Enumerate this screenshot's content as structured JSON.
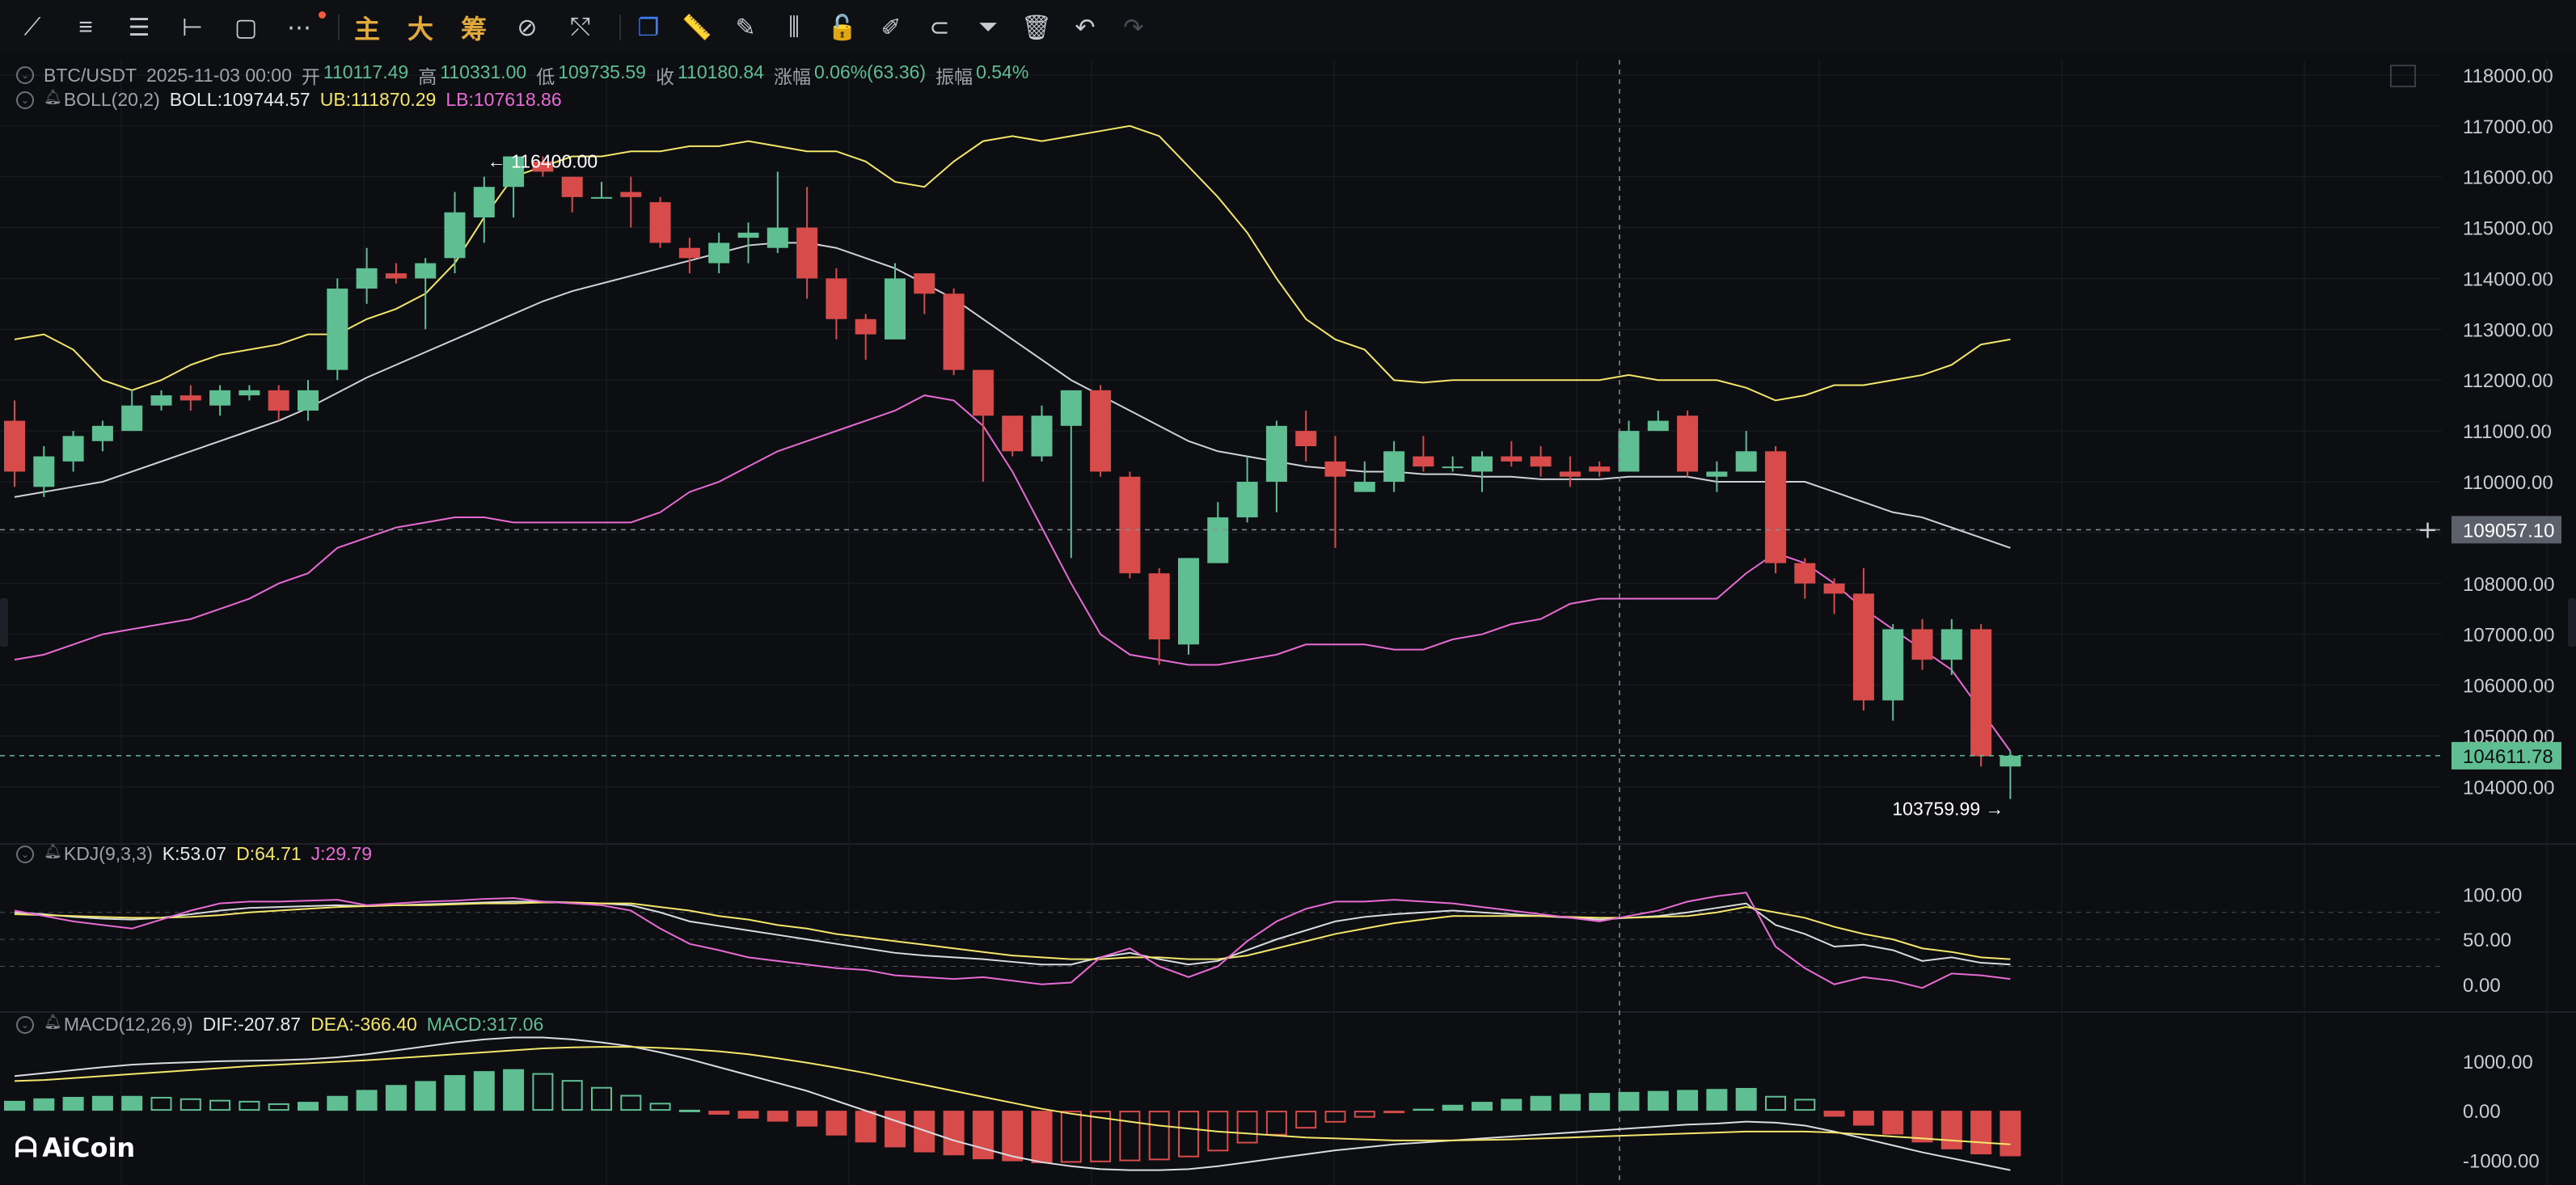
{
  "toolbar": {
    "tools": [
      {
        "name": "trend-line-icon",
        "glyph": "⟋"
      },
      {
        "name": "parallel-lines-icon",
        "glyph": "≡"
      },
      {
        "name": "horizontal-lines-icon",
        "glyph": "☰"
      },
      {
        "name": "horizontal-ray-icon",
        "glyph": "⊢"
      },
      {
        "name": "rectangle-icon",
        "glyph": "▢"
      },
      {
        "name": "more-icon",
        "glyph": "⋯"
      }
    ],
    "text_tabs": [
      "主",
      "大",
      "筹"
    ],
    "tools2": [
      {
        "name": "indicator-icon",
        "glyph": "⊘"
      },
      {
        "name": "measure-icon",
        "glyph": "⤲"
      }
    ],
    "tools3": [
      {
        "name": "copy-drawing-icon",
        "glyph": "❐"
      },
      {
        "name": "ruler-icon",
        "glyph": "📏"
      },
      {
        "name": "pen-icon",
        "glyph": "✎"
      },
      {
        "name": "candles-icon",
        "glyph": "⫼"
      },
      {
        "name": "lock-icon",
        "glyph": "🔓"
      },
      {
        "name": "note-icon",
        "glyph": "✐"
      },
      {
        "name": "magnet-icon",
        "glyph": "⊂"
      },
      {
        "name": "filter-icon",
        "glyph": "⏷"
      },
      {
        "name": "trash-icon",
        "glyph": "🗑"
      },
      {
        "name": "undo-icon",
        "glyph": "↶"
      },
      {
        "name": "redo-icon",
        "glyph": "↷"
      }
    ]
  },
  "legend": {
    "symbol": "BTC/USDT",
    "datetime": "2025-11-03 00:00",
    "open_label": "开",
    "open": "110117.49",
    "high_label": "高",
    "high": "110331.00",
    "low_label": "低",
    "low": "109735.59",
    "close_label": "收",
    "close": "110180.84",
    "change_label": "涨幅",
    "change": "0.06%(63.36)",
    "amp_label": "振幅",
    "amp": "0.54%",
    "boll_name": "BOLL(20,2)",
    "boll": "BOLL:109744.57",
    "ub": "UB:111870.29",
    "lb": "LB:107618.86",
    "kdj_name": "KDJ(9,3,3)",
    "k": "K:53.07",
    "d": "D:64.71",
    "j": "J:29.79",
    "macd_name": "MACD(12,26,9)",
    "dif": "DIF:-207.87",
    "dea": "DEA:-366.40",
    "macd": "MACD:317.06"
  },
  "logo": {
    "mark": "ᗩ",
    "text": "AiCoin"
  },
  "colors": {
    "up": "#5fbf93",
    "down": "#d84b4b",
    "mid": "#cfd2d8",
    "ub": "#f3e66a",
    "lb": "#e86bd5",
    "grid": "#1c1e24",
    "axis_text": "#c9ccd3",
    "last_price_bg": "#5fbf93",
    "crosshair_bg": "#5b606b"
  },
  "chart_data": {
    "type": "candlestick",
    "main": {
      "y_ticks": [
        104000,
        105000,
        106000,
        107000,
        108000,
        109000,
        110000,
        111000,
        112000,
        113000,
        114000,
        115000,
        116000,
        117000,
        118000
      ],
      "ylim": [
        103100,
        118300
      ],
      "candles": [
        [
          111200,
          110200,
          111600,
          109900
        ],
        [
          109900,
          110500,
          110700,
          109700
        ],
        [
          110400,
          110900,
          111000,
          110200
        ],
        [
          110800,
          111100,
          111200,
          110600
        ],
        [
          111000,
          111500,
          111800,
          111000
        ],
        [
          111500,
          111700,
          111800,
          111400
        ],
        [
          111700,
          111600,
          111900,
          111400
        ],
        [
          111500,
          111800,
          111900,
          111300
        ],
        [
          111700,
          111800,
          111900,
          111600
        ],
        [
          111800,
          111400,
          111900,
          111200
        ],
        [
          111400,
          111800,
          112000,
          111200
        ],
        [
          112200,
          113800,
          114000,
          112000
        ],
        [
          113800,
          114200,
          114600,
          113500
        ],
        [
          114100,
          114000,
          114300,
          113900
        ],
        [
          114000,
          114300,
          114400,
          113000
        ],
        [
          114400,
          115300,
          115700,
          114100
        ],
        [
          115200,
          115800,
          116000,
          114700
        ],
        [
          115800,
          116400,
          116400,
          115200
        ],
        [
          116300,
          116100,
          116400,
          116000
        ],
        [
          116000,
          115600,
          116000,
          115300
        ],
        [
          115600,
          115600,
          115900,
          115600
        ],
        [
          115700,
          115600,
          116000,
          115000
        ],
        [
          115500,
          114700,
          115600,
          114600
        ],
        [
          114600,
          114400,
          114800,
          114100
        ],
        [
          114300,
          114700,
          114900,
          114100
        ],
        [
          114800,
          114900,
          115100,
          114300
        ],
        [
          114600,
          115000,
          116100,
          114500
        ],
        [
          115000,
          114000,
          115800,
          113600
        ],
        [
          114000,
          113200,
          114200,
          112800
        ],
        [
          113200,
          112900,
          113300,
          112400
        ],
        [
          112800,
          114000,
          114300,
          112800
        ],
        [
          114100,
          113700,
          114000,
          113300
        ],
        [
          113700,
          112200,
          113800,
          112100
        ],
        [
          112200,
          111300,
          112000,
          110000
        ],
        [
          111300,
          110600,
          111300,
          110500
        ],
        [
          110500,
          111300,
          111500,
          110400
        ],
        [
          111100,
          111800,
          111800,
          108500
        ],
        [
          111800,
          110200,
          111900,
          110100
        ],
        [
          110100,
          108200,
          110200,
          108100
        ],
        [
          108200,
          106900,
          108300,
          106400
        ],
        [
          106800,
          108500,
          108500,
          106600
        ],
        [
          108400,
          109300,
          109600,
          108400
        ],
        [
          109300,
          110000,
          110500,
          109200
        ],
        [
          110000,
          111100,
          111200,
          109400
        ],
        [
          111000,
          110700,
          111400,
          110400
        ],
        [
          110400,
          110100,
          110900,
          108700
        ],
        [
          109800,
          110000,
          110400,
          109800
        ],
        [
          110000,
          110600,
          110800,
          109800
        ],
        [
          110500,
          110300,
          110900,
          110200
        ],
        [
          110300,
          110300,
          110500,
          110200
        ],
        [
          110200,
          110500,
          110600,
          109800
        ],
        [
          110500,
          110400,
          110800,
          110300
        ],
        [
          110500,
          110300,
          110700,
          110100
        ],
        [
          110200,
          110100,
          110500,
          109900
        ],
        [
          110300,
          110200,
          110400,
          110100
        ],
        [
          110200,
          111000,
          111200,
          110200
        ],
        [
          111000,
          111200,
          111400,
          111000
        ],
        [
          111300,
          110200,
          111400,
          110100
        ],
        [
          110100,
          110200,
          110400,
          109800
        ],
        [
          110200,
          110600,
          111000,
          110200
        ],
        [
          110600,
          108400,
          110700,
          108200
        ],
        [
          108400,
          108000,
          108500,
          107700
        ],
        [
          108000,
          107800,
          108100,
          107400
        ],
        [
          107800,
          105700,
          108300,
          105500
        ],
        [
          105700,
          107100,
          107200,
          105300
        ],
        [
          107100,
          106500,
          107300,
          106300
        ],
        [
          106500,
          107100,
          107300,
          106200
        ],
        [
          107100,
          104600,
          107200,
          104400
        ],
        [
          104400,
          104612,
          104700,
          103760
        ]
      ],
      "mid": [
        109700,
        109800,
        109900,
        110000,
        110200,
        110400,
        110600,
        110800,
        111000,
        111200,
        111450,
        111750,
        112050,
        112300,
        112550,
        112800,
        113050,
        113300,
        113550,
        113750,
        113900,
        114050,
        114200,
        114350,
        114500,
        114650,
        114700,
        114700,
        114600,
        114400,
        114200,
        113900,
        113600,
        113200,
        112800,
        112400,
        112000,
        111700,
        111400,
        111100,
        110800,
        110600,
        110500,
        110400,
        110300,
        110250,
        110200,
        110200,
        110150,
        110150,
        110100,
        110100,
        110050,
        110050,
        110050,
        110100,
        110100,
        110100,
        110000,
        110000,
        110000,
        110000,
        109800,
        109600,
        109400,
        109300,
        109100,
        108900,
        108700
      ],
      "ub": [
        112800,
        112900,
        112600,
        112000,
        111800,
        112000,
        112300,
        112500,
        112600,
        112700,
        112900,
        112900,
        113200,
        113400,
        113700,
        114300,
        115200,
        116000,
        116200,
        116400,
        116400,
        116500,
        116500,
        116600,
        116600,
        116700,
        116600,
        116500,
        116500,
        116300,
        115900,
        115800,
        116300,
        116700,
        116800,
        116700,
        116800,
        116900,
        117000,
        116800,
        116200,
        115600,
        114900,
        114000,
        113200,
        112800,
        112600,
        112000,
        111950,
        112000,
        112000,
        112000,
        112000,
        112000,
        112000,
        112100,
        112000,
        112000,
        112000,
        111850,
        111600,
        111700,
        111900,
        111900,
        112000,
        112100,
        112300,
        112700,
        112800
      ],
      "lb": [
        106500,
        106600,
        106800,
        107000,
        107100,
        107200,
        107300,
        107500,
        107700,
        108000,
        108200,
        108700,
        108900,
        109100,
        109200,
        109300,
        109300,
        109200,
        109200,
        109200,
        109200,
        109200,
        109400,
        109800,
        110000,
        110300,
        110600,
        110800,
        111000,
        111200,
        111400,
        111700,
        111600,
        111100,
        110200,
        109100,
        108000,
        107000,
        106600,
        106500,
        106400,
        106400,
        106500,
        106600,
        106800,
        106800,
        106800,
        106700,
        106700,
        106900,
        107000,
        107200,
        107300,
        107600,
        107700,
        107700,
        107700,
        107700,
        107700,
        108200,
        108600,
        108400,
        108000,
        107500,
        107100,
        106700,
        106300,
        105500,
        104700
      ]
    },
    "markers": {
      "high": "← 116400.00",
      "low": "103759.99 →"
    },
    "price_labels": {
      "crosshair": "109057.10",
      "last": "104611.78"
    },
    "kdj": {
      "y_ticks": [
        0,
        50,
        100
      ],
      "y_tick_labels": [
        "0.00",
        "50.00",
        "100.00"
      ],
      "ylim": [
        -20,
        140
      ],
      "k": [
        80,
        78,
        75,
        73,
        72,
        74,
        78,
        82,
        85,
        86,
        87,
        88,
        87,
        88,
        89,
        90,
        91,
        92,
        92,
        91,
        90,
        88,
        80,
        70,
        65,
        60,
        55,
        50,
        45,
        40,
        35,
        32,
        30,
        28,
        25,
        22,
        22,
        30,
        35,
        28,
        22,
        26,
        38,
        50,
        60,
        70,
        75,
        78,
        80,
        82,
        80,
        78,
        76,
        74,
        72,
        74,
        76,
        80,
        85,
        90,
        66,
        56,
        42,
        44,
        38,
        26,
        30,
        24,
        22
      ],
      "d": [
        78,
        77,
        76,
        75,
        74,
        74,
        75,
        77,
        80,
        82,
        84,
        86,
        87,
        88,
        88,
        89,
        90,
        90,
        91,
        91,
        90,
        90,
        86,
        82,
        76,
        72,
        66,
        62,
        56,
        52,
        48,
        44,
        40,
        36,
        32,
        30,
        28,
        28,
        30,
        30,
        28,
        28,
        32,
        40,
        48,
        56,
        62,
        68,
        72,
        76,
        76,
        76,
        76,
        75,
        74,
        74,
        75,
        76,
        80,
        86,
        80,
        74,
        64,
        56,
        50,
        40,
        36,
        30,
        28
      ],
      "j": [
        82,
        76,
        70,
        66,
        62,
        72,
        82,
        90,
        92,
        92,
        93,
        94,
        88,
        90,
        92,
        93,
        95,
        96,
        92,
        90,
        88,
        82,
        62,
        45,
        38,
        30,
        26,
        22,
        18,
        16,
        10,
        8,
        6,
        8,
        4,
        0,
        2,
        30,
        40,
        20,
        8,
        20,
        48,
        70,
        84,
        92,
        92,
        94,
        92,
        90,
        86,
        82,
        78,
        74,
        70,
        76,
        82,
        92,
        98,
        102,
        42,
        18,
        0,
        8,
        4,
        -4,
        12,
        10,
        6
      ]
    },
    "macd": {
      "y_ticks": [
        -1000,
        0,
        1000
      ],
      "y_tick_labels": [
        "-1000.00",
        "0.00",
        "1000.00"
      ],
      "ylim": [
        -1500,
        1700
      ],
      "hist": [
        200,
        250,
        280,
        300,
        300,
        280,
        250,
        220,
        200,
        150,
        180,
        300,
        420,
        520,
        600,
        720,
        800,
        840,
        760,
        620,
        480,
        320,
        160,
        20,
        -80,
        -160,
        -220,
        -320,
        -500,
        -640,
        -740,
        -840,
        -900,
        -980,
        -1020,
        -1060,
        -1050,
        -1040,
        -1020,
        -1000,
        -940,
        -820,
        -660,
        -500,
        -360,
        -240,
        -140,
        -40,
        40,
        120,
        180,
        240,
        300,
        340,
        360,
        380,
        400,
        420,
        440,
        460,
        300,
        240,
        -120,
        -300,
        -480,
        -640,
        -780,
        -880,
        -920
      ],
      "dif": [
        700,
        760,
        820,
        880,
        930,
        960,
        980,
        1000,
        1010,
        1020,
        1040,
        1080,
        1140,
        1220,
        1300,
        1380,
        1440,
        1480,
        1480,
        1440,
        1380,
        1300,
        1180,
        1040,
        880,
        720,
        560,
        400,
        200,
        0,
        -200,
        -400,
        -600,
        -760,
        -920,
        -1040,
        -1120,
        -1180,
        -1200,
        -1200,
        -1180,
        -1120,
        -1040,
        -960,
        -880,
        -800,
        -740,
        -680,
        -640,
        -600,
        -560,
        -520,
        -480,
        -440,
        -400,
        -360,
        -320,
        -280,
        -260,
        -220,
        -240,
        -300,
        -420,
        -560,
        -700,
        -840,
        -960,
        -1080,
        -1200
      ],
      "dea": [
        600,
        620,
        660,
        700,
        740,
        780,
        820,
        860,
        900,
        930,
        960,
        990,
        1020,
        1060,
        1100,
        1140,
        1180,
        1220,
        1260,
        1280,
        1290,
        1290,
        1270,
        1240,
        1200,
        1140,
        1060,
        970,
        870,
        760,
        640,
        520,
        400,
        280,
        160,
        40,
        -60,
        -140,
        -220,
        -300,
        -360,
        -420,
        -460,
        -500,
        -540,
        -560,
        -580,
        -600,
        -600,
        -600,
        -590,
        -580,
        -560,
        -540,
        -520,
        -500,
        -480,
        -460,
        -440,
        -420,
        -420,
        -420,
        -440,
        -480,
        -520,
        -560,
        -600,
        -640,
        -680
      ]
    }
  }
}
